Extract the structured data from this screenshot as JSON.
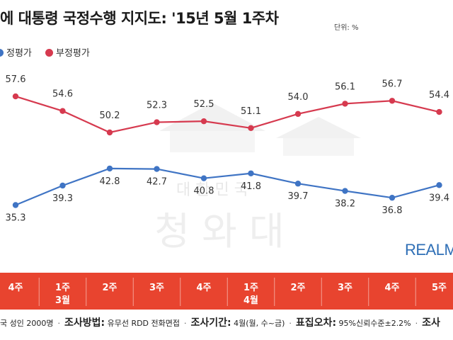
{
  "title": "에 대통령 국정수행 지지도: '15년 5월 1주차",
  "unit": "단위: %",
  "logo": "REALM",
  "footer": [
    {
      "bold": "",
      "text": "국 성인 2000명"
    },
    {
      "bold": "조사방법:",
      "text": "유무선 RDD 전화면접"
    },
    {
      "bold": "조사기간:",
      "text": "4월(월, 수~금)"
    },
    {
      "bold": "표집오차:",
      "text": "95%신뢰수준±2.2%"
    },
    {
      "bold": "조사",
      "text": ""
    }
  ],
  "chart_data": {
    "type": "line",
    "x_weeks": [
      "4주",
      "1주",
      "2주",
      "3주",
      "4주",
      "1주",
      "2주",
      "3주",
      "4주",
      "5주"
    ],
    "x_months": [
      "",
      "3월",
      "",
      "",
      "",
      "4월",
      "",
      "",
      "",
      ""
    ],
    "series": [
      {
        "name": "부정평가",
        "color": "#d63a4f",
        "values": [
          57.6,
          54.6,
          50.2,
          52.3,
          52.5,
          51.1,
          54.0,
          56.1,
          56.7,
          54.4
        ]
      },
      {
        "name": "정평가",
        "color": "#3f74c4",
        "values": [
          35.3,
          39.3,
          42.8,
          42.7,
          40.8,
          41.8,
          39.7,
          38.2,
          36.8,
          39.4
        ]
      }
    ]
  }
}
